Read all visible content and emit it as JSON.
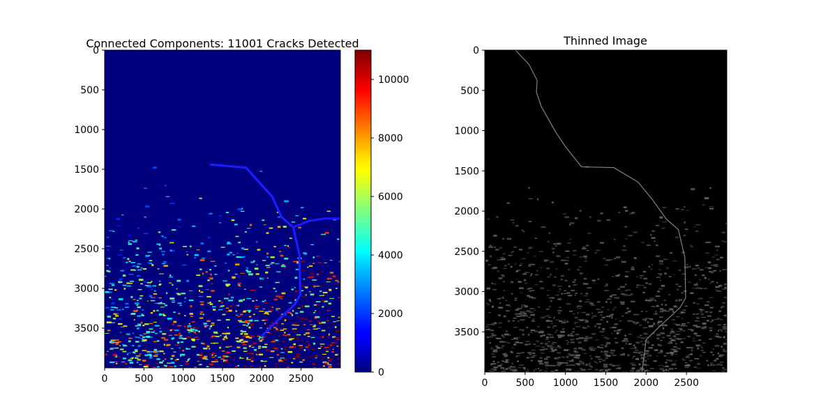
{
  "chart_data": [
    {
      "type": "heatmap",
      "title": "Connected Components: 11001 Cracks Detected",
      "colormap": "jet",
      "xlim": [
        0,
        3000
      ],
      "ylim": [
        4000,
        0
      ],
      "x_ticks": [
        "0",
        "500",
        "1000",
        "1500",
        "2000",
        "2500"
      ],
      "y_ticks": [
        "0",
        "500",
        "1000",
        "1500",
        "2000",
        "2500",
        "3000",
        "3500"
      ],
      "colorbar": {
        "range": [
          0,
          11001
        ],
        "ticks": [
          "0",
          "2000",
          "4000",
          "6000",
          "8000",
          "10000"
        ]
      },
      "features": [
        {
          "label": "main crack path",
          "points": [
            [
              1350,
              1440
            ],
            [
              1800,
              1480
            ],
            [
              2000,
              1700
            ],
            [
              2130,
              1840
            ],
            [
              2250,
              2100
            ],
            [
              2400,
              2230
            ],
            [
              2480,
              2580
            ],
            [
              2490,
              3080
            ],
            [
              2420,
              3200
            ],
            [
              2150,
              3450
            ],
            [
              2000,
              3600
            ]
          ]
        },
        {
          "label": "branch",
          "points": [
            [
              2400,
              2230
            ],
            [
              2600,
              2150
            ],
            [
              2800,
              2120
            ],
            [
              3000,
              2120
            ]
          ]
        }
      ]
    },
    {
      "type": "heatmap",
      "title": "Thinned Image",
      "colormap": "gray",
      "xlim": [
        0,
        3000
      ],
      "ylim": [
        4000,
        0
      ],
      "x_ticks": [
        "0",
        "500",
        "1000",
        "1500",
        "2000",
        "2500"
      ],
      "y_ticks": [
        "0",
        "500",
        "1000",
        "1500",
        "2000",
        "2500",
        "3000",
        "3500"
      ],
      "features": [
        {
          "label": "skeleton path",
          "points": [
            [
              380,
              0
            ],
            [
              550,
              180
            ],
            [
              650,
              380
            ],
            [
              640,
              520
            ],
            [
              700,
              700
            ],
            [
              880,
              1020
            ],
            [
              1000,
              1200
            ],
            [
              1200,
              1450
            ],
            [
              1600,
              1460
            ],
            [
              1900,
              1640
            ],
            [
              2080,
              1860
            ],
            [
              2250,
              2100
            ],
            [
              2400,
              2230
            ],
            [
              2480,
              2580
            ],
            [
              2490,
              3080
            ],
            [
              2420,
              3200
            ],
            [
              2150,
              3450
            ],
            [
              2000,
              3600
            ],
            [
              1950,
              4000
            ]
          ]
        }
      ]
    }
  ]
}
